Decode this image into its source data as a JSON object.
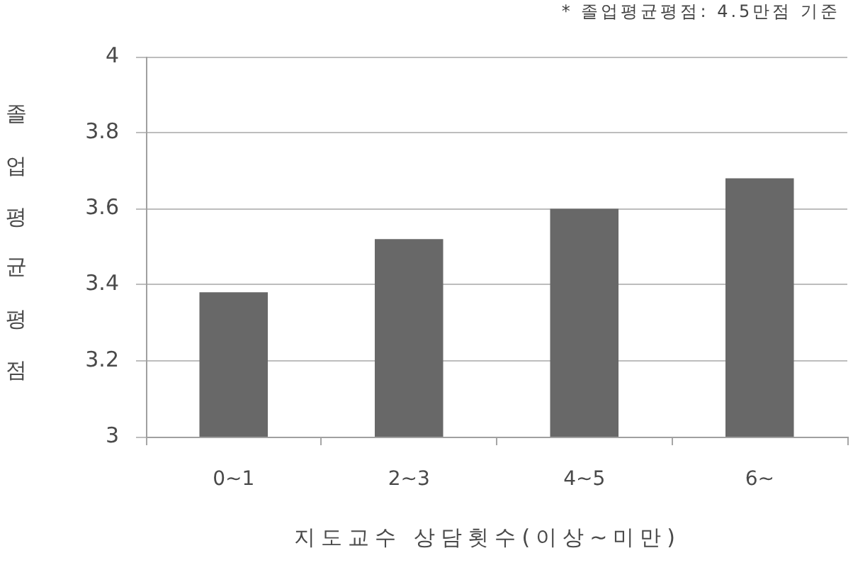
{
  "chart_data": {
    "type": "bar",
    "categories": [
      "0~1",
      "2~3",
      "4~5",
      "6~"
    ],
    "values": [
      3.38,
      3.52,
      3.6,
      3.68
    ],
    "color": "#686868",
    "ylim": [
      3,
      4
    ],
    "yticks": [
      3,
      3.2,
      3.4,
      3.6,
      3.8,
      4
    ],
    "grid": "y",
    "xlabel": "지도교수 상담횟수(이상~미만)",
    "ylabel": "졸업평균평점",
    "annotations": [
      "* 졸업평균평점: 4.5만점 기준"
    ]
  }
}
